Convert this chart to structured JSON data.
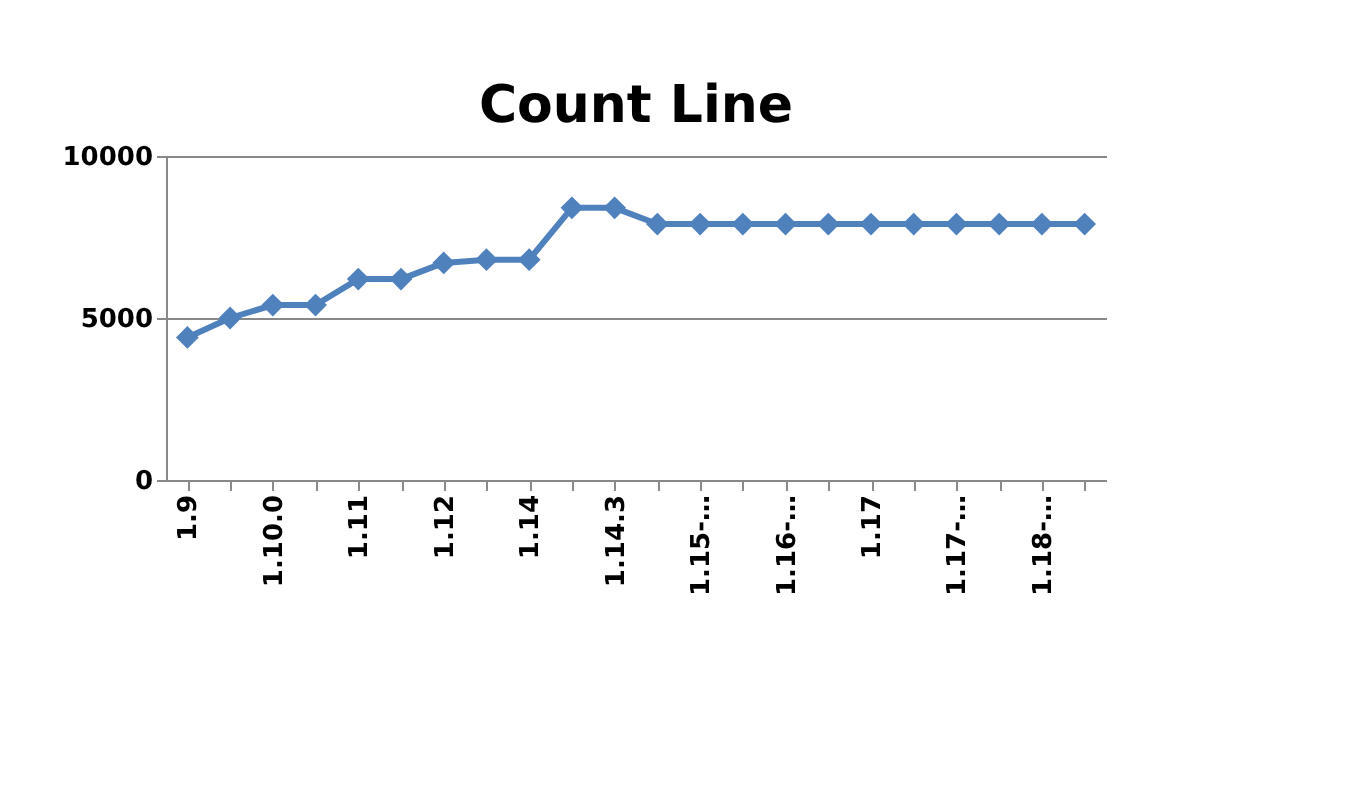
{
  "chart_data": {
    "type": "line",
    "title": "Count Line",
    "categories": [
      "1.9",
      null,
      "1.10.0",
      null,
      "1.11",
      null,
      "1.12",
      null,
      "1.14",
      null,
      "1.14.3",
      null,
      "1.15-…",
      null,
      "1.16-…",
      null,
      "1.17",
      null,
      "1.17-…",
      null,
      "1.18-…",
      null
    ],
    "series": [
      {
        "color": "#4f81bd",
        "values": [
          4400,
          5000,
          5400,
          5400,
          6200,
          6200,
          6700,
          6800,
          6800,
          8400,
          8400,
          7900,
          7900,
          7900,
          7900,
          7900,
          7900,
          7900,
          7900,
          7900,
          7900,
          7900
        ]
      }
    ],
    "ylim": [
      0,
      10000
    ],
    "yticks": [
      0,
      5000,
      10000
    ],
    "grid": "y",
    "marker": "diamond"
  }
}
